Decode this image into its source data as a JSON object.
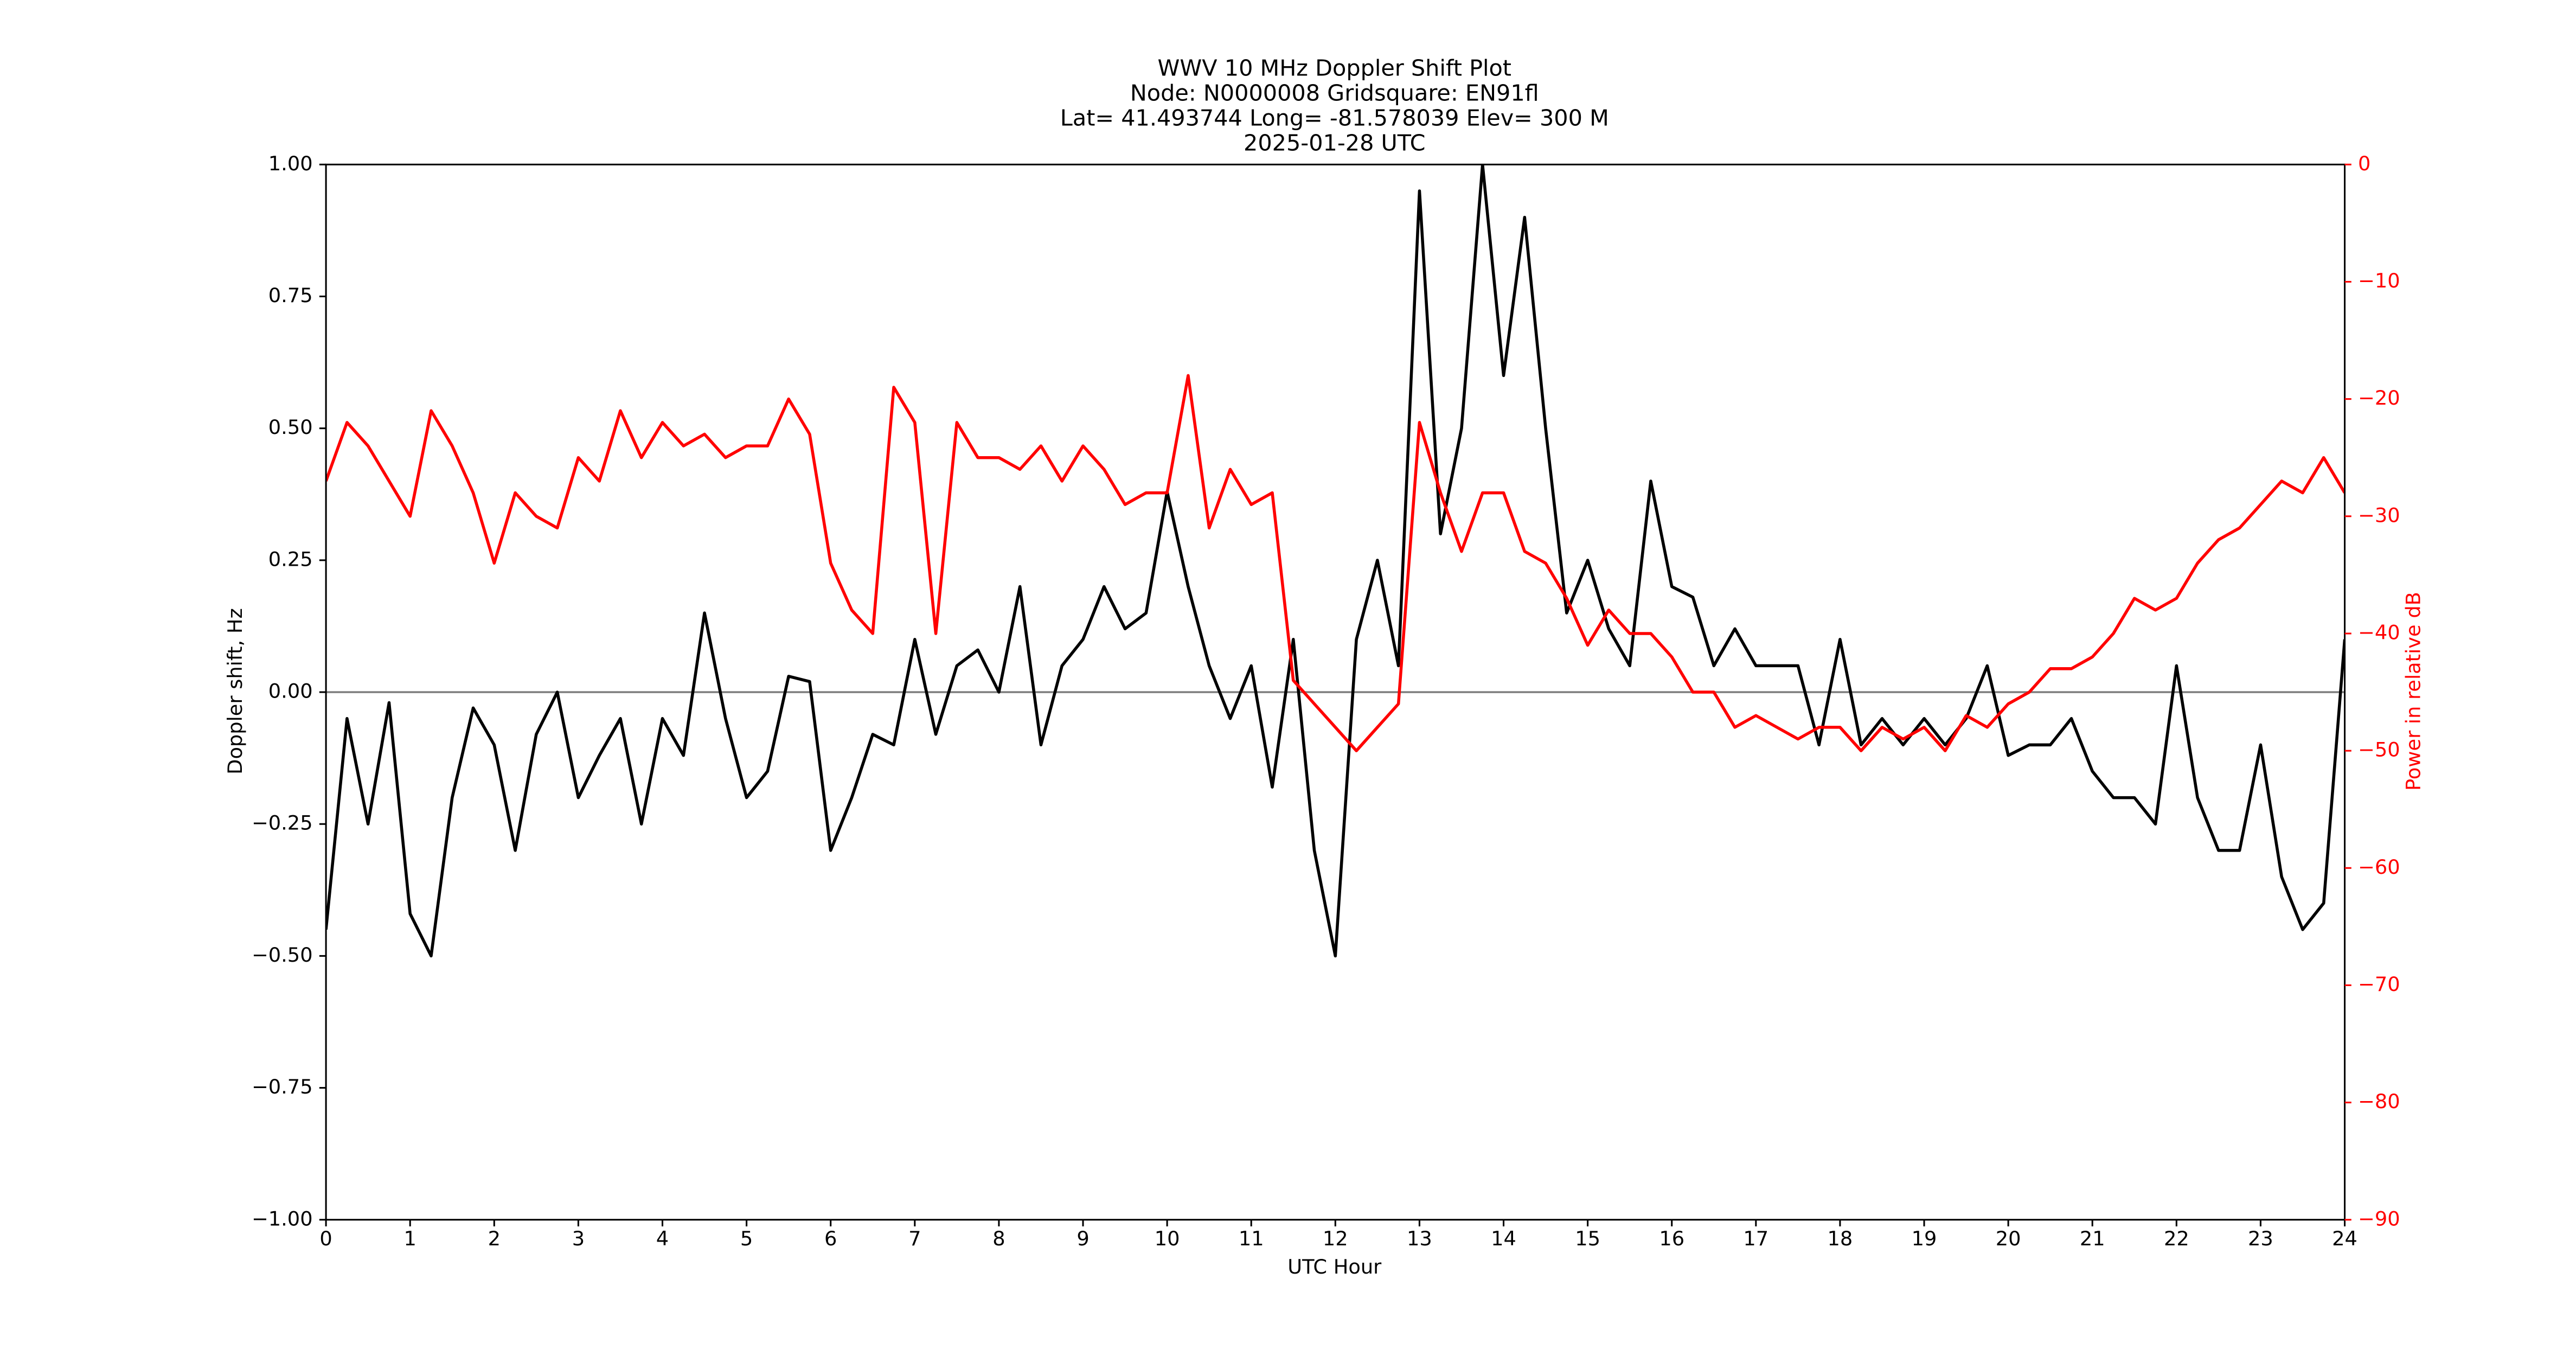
{
  "chart_data": {
    "type": "line",
    "title_lines": [
      "WWV 10 MHz Doppler Shift Plot",
      "Node:  N0000008     Gridsquare:  EN91fl",
      "Lat= 41.493744    Long=  -81.578039    Elev=  300 M",
      "2025-01-28  UTC"
    ],
    "xlabel": "UTC Hour",
    "ylabel": "Doppler shift, Hz",
    "y2label": "Power in relative dB",
    "x": [
      0,
      0.25,
      0.5,
      0.75,
      1,
      1.25,
      1.5,
      1.75,
      2,
      2.25,
      2.5,
      2.75,
      3,
      3.25,
      3.5,
      3.75,
      4,
      4.25,
      4.5,
      4.75,
      5,
      5.25,
      5.5,
      5.75,
      6,
      6.25,
      6.5,
      6.75,
      7,
      7.25,
      7.5,
      7.75,
      8,
      8.25,
      8.5,
      8.75,
      9,
      9.25,
      9.5,
      9.75,
      10,
      10.25,
      10.5,
      10.75,
      11,
      11.25,
      11.5,
      11.75,
      12,
      12.25,
      12.5,
      12.75,
      13,
      13.25,
      13.5,
      13.75,
      14,
      14.25,
      14.5,
      14.75,
      15,
      15.25,
      15.5,
      15.75,
      16,
      16.25,
      16.5,
      16.75,
      17,
      17.25,
      17.5,
      17.75,
      18,
      18.25,
      18.5,
      18.75,
      19,
      19.25,
      19.5,
      19.75,
      20,
      20.25,
      20.5,
      20.75,
      21,
      21.25,
      21.5,
      21.75,
      22,
      22.25,
      22.5,
      22.75,
      23,
      23.25,
      23.5,
      23.75,
      24
    ],
    "series": [
      {
        "name": "Doppler shift",
        "color": "#000000",
        "axis": "y",
        "values": [
          -0.45,
          -0.05,
          -0.25,
          -0.02,
          -0.42,
          -0.5,
          -0.2,
          -0.03,
          -0.1,
          -0.3,
          -0.08,
          0.0,
          -0.2,
          -0.12,
          -0.05,
          -0.25,
          -0.05,
          -0.12,
          0.15,
          -0.05,
          -0.2,
          -0.15,
          0.03,
          0.02,
          -0.3,
          -0.2,
          -0.08,
          -0.1,
          0.1,
          -0.08,
          0.05,
          0.08,
          0.0,
          0.2,
          -0.1,
          0.05,
          0.1,
          0.2,
          0.12,
          0.15,
          0.38,
          0.2,
          0.05,
          -0.05,
          0.05,
          -0.18,
          0.1,
          -0.3,
          -0.5,
          0.1,
          0.25,
          0.05,
          0.95,
          0.3,
          0.5,
          1.0,
          0.6,
          0.9,
          0.5,
          0.15,
          0.25,
          0.12,
          0.05,
          0.4,
          0.2,
          0.18,
          0.05,
          0.12,
          0.05,
          0.05,
          0.05,
          -0.1,
          0.1,
          -0.1,
          -0.05,
          -0.1,
          -0.05,
          -0.1,
          -0.05,
          0.05,
          -0.12,
          -0.1,
          -0.1,
          -0.05,
          -0.15,
          -0.2,
          -0.2,
          -0.25,
          0.05,
          -0.2,
          -0.3,
          -0.3,
          -0.1,
          -0.35,
          -0.45,
          -0.4,
          0.1
        ]
      },
      {
        "name": "Power",
        "color": "#ff0000",
        "axis": "y2",
        "values": [
          -27,
          -22,
          -24,
          -27,
          -30,
          -21,
          -24,
          -28,
          -34,
          -28,
          -30,
          -31,
          -25,
          -27,
          -21,
          -25,
          -22,
          -24,
          -23,
          -25,
          -24,
          -24,
          -20,
          -23,
          -34,
          -38,
          -40,
          -19,
          -22,
          -40,
          -22,
          -25,
          -25,
          -26,
          -24,
          -27,
          -24,
          -26,
          -29,
          -28,
          -28,
          -18,
          -31,
          -26,
          -29,
          -28,
          -44,
          -46,
          -48,
          -50,
          -48,
          -46,
          -22,
          -28,
          -33,
          -28,
          -28,
          -33,
          -34,
          -37,
          -41,
          -38,
          -40,
          -40,
          -42,
          -45,
          -45,
          -48,
          -47,
          -48,
          -49,
          -48,
          -48,
          -50,
          -48,
          -49,
          -48,
          -50,
          -47,
          -48,
          -46,
          -45,
          -43,
          -43,
          -42,
          -40,
          -37,
          -38,
          -37,
          -34,
          -32,
          -31,
          -29,
          -27,
          -28,
          -25,
          -28
        ]
      }
    ],
    "hline": {
      "y": 0,
      "color": "#808080"
    },
    "xlim": [
      0,
      24
    ],
    "xticks": [
      0,
      1,
      2,
      3,
      4,
      5,
      6,
      7,
      8,
      9,
      10,
      11,
      12,
      13,
      14,
      15,
      16,
      17,
      18,
      19,
      20,
      21,
      22,
      23,
      24
    ],
    "ylim": [
      -1,
      1
    ],
    "yticks": [
      {
        "value": -1,
        "label": "−1.00"
      },
      {
        "value": -0.75,
        "label": "−0.75"
      },
      {
        "value": -0.5,
        "label": "−0.50"
      },
      {
        "value": -0.25,
        "label": "−0.25"
      },
      {
        "value": 0,
        "label": "0.00"
      },
      {
        "value": 0.25,
        "label": "0.25"
      },
      {
        "value": 0.5,
        "label": "0.50"
      },
      {
        "value": 0.75,
        "label": "0.75"
      },
      {
        "value": 1,
        "label": "1.00"
      }
    ],
    "y2lim": [
      -90,
      0
    ],
    "y2ticks": [
      {
        "value": -90,
        "label": "−90"
      },
      {
        "value": -80,
        "label": "−80"
      },
      {
        "value": -70,
        "label": "−70"
      },
      {
        "value": -60,
        "label": "−60"
      },
      {
        "value": -50,
        "label": "−50"
      },
      {
        "value": -40,
        "label": "−40"
      },
      {
        "value": -30,
        "label": "−30"
      },
      {
        "value": -20,
        "label": "−20"
      },
      {
        "value": -10,
        "label": "−10"
      },
      0
    ],
    "y2color": "#ff0000"
  }
}
